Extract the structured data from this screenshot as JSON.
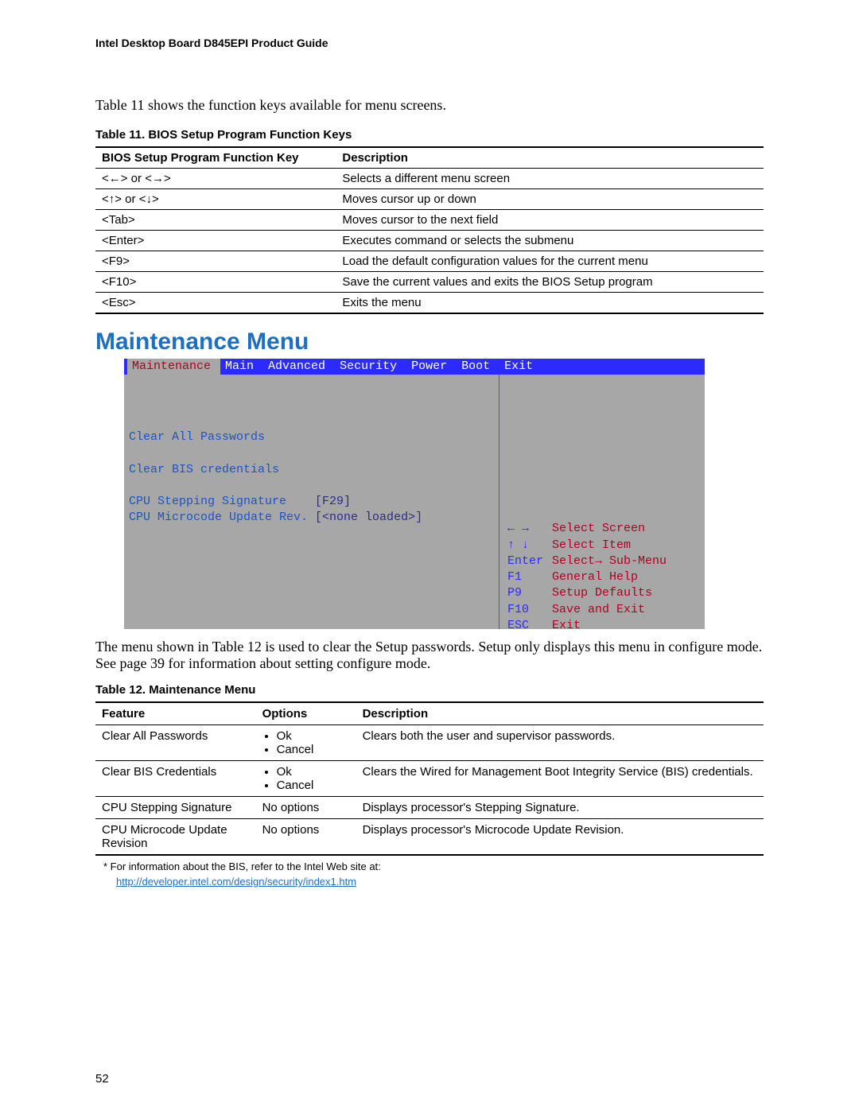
{
  "doc_header": "Intel Desktop Board D845EPI Product Guide",
  "intro_text": "Table 11 shows the function keys available for menu screens.",
  "table11": {
    "caption": "Table 11.    BIOS Setup Program Function Keys",
    "header_key": "BIOS Setup Program Function Key",
    "header_desc": "Description",
    "rows": [
      {
        "key": "<←> or <→>",
        "desc": "Selects a different menu screen"
      },
      {
        "key": "<↑> or <↓>",
        "desc": "Moves cursor up or down"
      },
      {
        "key": "<Tab>",
        "desc": "Moves cursor to the next field"
      },
      {
        "key": "<Enter>",
        "desc": "Executes command or selects the submenu"
      },
      {
        "key": "<F9>",
        "desc": "Load the default configuration values for the current menu"
      },
      {
        "key": "<F10>",
        "desc": "Save the current values and exits the BIOS Setup program"
      },
      {
        "key": "<Esc>",
        "desc": "Exits the menu"
      }
    ]
  },
  "section_heading": "Maintenance Menu",
  "bios": {
    "menubar": {
      "active": "Maintenance",
      "items": [
        "Main",
        "Advanced",
        "Security",
        "Power",
        "Boot",
        "Exit"
      ]
    },
    "left": {
      "blank": " ",
      "line1": "Clear All Passwords",
      "line2": "Clear BIS credentials",
      "line3_label": "CPU Stepping Signature    ",
      "line3_value": "[F29]",
      "line4_label": "CPU Microcode Update Rev. ",
      "line4_value": "[<none loaded>]"
    },
    "right": [
      {
        "key": "←  →",
        "label": "Select Screen"
      },
      {
        "key": "↑  ↓",
        "label": "Select Item"
      },
      {
        "key": "Enter",
        "label": "Select→ Sub-Menu"
      },
      {
        "key": "F1",
        "label": "General Help"
      },
      {
        "key": "P9",
        "label": "Setup Defaults"
      },
      {
        "key": "F10",
        "label": "Save and Exit"
      },
      {
        "key": "ESC",
        "label": "Exit"
      }
    ]
  },
  "below_screen": "The menu shown in Table 12 is used to clear the Setup passwords.  Setup only displays this menu in configure mode.  See page 39 for information about setting configure mode.",
  "table12": {
    "caption": "Table 12.    Maintenance Menu",
    "headers": {
      "feature": "Feature",
      "options": "Options",
      "description": "Description"
    },
    "rows": [
      {
        "feature": "Clear All Passwords",
        "options": [
          "Ok",
          "Cancel"
        ],
        "description": "Clears both the user and supervisor passwords."
      },
      {
        "feature": "Clear BIS Credentials",
        "options": [
          "Ok",
          "Cancel"
        ],
        "description": "Clears the Wired for Management Boot Integrity Service (BIS) credentials."
      },
      {
        "feature": "CPU Stepping Signature",
        "options_text": "No options",
        "description": "Displays processor's Stepping Signature."
      },
      {
        "feature": "CPU Microcode Update Revision",
        "options_text": "No options",
        "description": "Displays processor's Microcode Update Revision."
      }
    ]
  },
  "footnote": {
    "text": "*  For information about the BIS, refer to the Intel Web site at:",
    "link": "http://developer.intel.com/design/security/index1.htm"
  },
  "page_number": "52"
}
